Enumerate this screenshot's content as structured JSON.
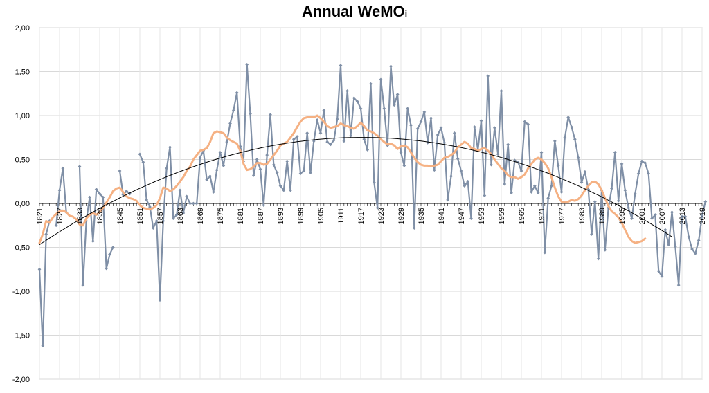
{
  "chart_data": {
    "type": "line",
    "title": "Annual WeMO",
    "title_subscript": "i",
    "xlabel": "",
    "ylabel": "",
    "ylim": [
      -2,
      2
    ],
    "xlim": [
      1821,
      2019
    ],
    "y_ticks": [
      "-2,00",
      "-1,50",
      "-1,00",
      "-0,50",
      "0,00",
      "0,50",
      "1,00",
      "1,50",
      "2,00"
    ],
    "x_ticks": [
      "1821",
      "1827",
      "1833",
      "1839",
      "1845",
      "1851",
      "1857",
      "1863",
      "1869",
      "1875",
      "1881",
      "1887",
      "1893",
      "1899",
      "1905",
      "1911",
      "1917",
      "1923",
      "1929",
      "1935",
      "1941",
      "1947",
      "1953",
      "1959",
      "1965",
      "1971",
      "1977",
      "1983",
      "1989",
      "1995",
      "2001",
      "2007",
      "2013",
      "2019"
    ],
    "grid": true,
    "legend": "none",
    "colors": {
      "annual": "#7f8fa6",
      "smooth": "#f5b183",
      "trend": "#000000"
    },
    "series": [
      {
        "id": "annual",
        "style": "line-markers",
        "start_year": 1821,
        "values": [
          -0.75,
          -1.62,
          -0.35,
          -0.2,
          null,
          -0.25,
          0.15,
          0.4,
          -0.1,
          null,
          null,
          null,
          0.42,
          -0.93,
          -0.2,
          0.07,
          -0.43,
          0.16,
          0.11,
          0.07,
          -0.74,
          -0.58,
          -0.5,
          null,
          0.37,
          0.1,
          0.14,
          0.11,
          null,
          null,
          0.56,
          0.47,
          0.04,
          -0.04,
          -0.28,
          -0.2,
          -1.1,
          -0.2,
          0.4,
          0.64,
          -0.17,
          -0.13,
          0.15,
          -0.11,
          0.08,
          0.0,
          0.0,
          0.0,
          0.52,
          0.6,
          0.27,
          0.31,
          0.13,
          0.38,
          0.58,
          0.43,
          0.7,
          0.91,
          1.06,
          1.26,
          0.65,
          0.48,
          1.58,
          1.02,
          0.32,
          0.5,
          0.39,
          -0.02,
          0.55,
          1.01,
          0.44,
          0.35,
          0.2,
          0.15,
          0.48,
          0.15,
          0.73,
          0.76,
          0.34,
          0.37,
          0.8,
          0.35,
          0.71,
          0.95,
          0.8,
          1.06,
          0.7,
          0.67,
          0.72,
          0.96,
          1.57,
          0.71,
          1.28,
          0.77,
          1.2,
          1.16,
          1.08,
          0.73,
          0.61,
          1.36,
          0.24,
          -0.05,
          1.41,
          1.08,
          0.66,
          1.56,
          1.12,
          1.24,
          0.58,
          0.43,
          1.08,
          0.89,
          -0.28,
          0.85,
          0.93,
          1.04,
          0.69,
          0.97,
          0.38,
          0.78,
          0.86,
          0.69,
          0.04,
          0.31,
          0.8,
          0.51,
          0.37,
          0.2,
          0.25,
          -0.17,
          0.87,
          0.61,
          0.94,
          0.09,
          1.45,
          0.44,
          0.86,
          0.56,
          1.28,
          0.22,
          0.67,
          0.12,
          0.49,
          0.47,
          0.37,
          0.93,
          0.9,
          0.13,
          0.2,
          0.12,
          0.58,
          -0.56,
          0.06,
          0.2,
          0.71,
          0.43,
          0.13,
          0.75,
          0.98,
          0.87,
          0.73,
          0.52,
          0.24,
          0.36,
          0.16,
          -0.35,
          0.02,
          -0.63,
          0.15,
          -0.53,
          -0.05,
          0.17,
          0.58,
          0.03,
          0.45,
          0.15,
          -0.05,
          -0.17,
          0.11,
          0.34,
          0.48,
          0.46,
          0.34,
          -0.17,
          -0.13,
          -0.77,
          -0.83,
          -0.3,
          -0.47,
          -0.1,
          -0.49,
          -0.93,
          -0.15,
          -0.15,
          -0.38,
          -0.52,
          -0.57,
          -0.42,
          -0.14,
          0.02
        ]
      },
      {
        "id": "smooth",
        "style": "line",
        "start_year": 1821,
        "values": [
          -0.45,
          -0.35,
          -0.2,
          -0.22,
          -0.16,
          -0.12,
          -0.09,
          -0.08,
          -0.1,
          -0.14,
          -0.15,
          -0.18,
          -0.24,
          -0.25,
          -0.17,
          -0.13,
          -0.11,
          -0.13,
          -0.1,
          -0.05,
          0.01,
          0.07,
          0.14,
          0.17,
          0.18,
          0.13,
          0.08,
          0.06,
          0.05,
          0.03,
          -0.02,
          -0.05,
          -0.06,
          -0.07,
          -0.05,
          -0.02,
          0.06,
          0.18,
          0.17,
          0.14,
          0.16,
          0.2,
          0.25,
          0.3,
          0.37,
          0.42,
          0.5,
          0.55,
          0.6,
          0.61,
          0.63,
          0.7,
          0.8,
          0.82,
          0.81,
          0.8,
          0.75,
          0.72,
          0.7,
          0.68,
          0.6,
          0.45,
          0.38,
          0.39,
          0.42,
          0.46,
          0.46,
          0.44,
          0.45,
          0.5,
          0.55,
          0.6,
          0.66,
          0.68,
          0.7,
          0.75,
          0.8,
          0.87,
          0.93,
          0.97,
          0.98,
          0.98,
          0.98,
          1.0,
          0.97,
          0.93,
          0.88,
          0.86,
          0.87,
          0.88,
          0.91,
          0.89,
          0.88,
          0.86,
          0.85,
          0.88,
          0.92,
          0.88,
          0.83,
          0.82,
          0.8,
          0.77,
          0.73,
          0.7,
          0.67,
          0.68,
          0.66,
          0.62,
          0.65,
          0.66,
          0.64,
          0.58,
          0.52,
          0.47,
          0.44,
          0.43,
          0.43,
          0.42,
          0.43,
          0.44,
          0.48,
          0.52,
          0.53,
          0.55,
          0.58,
          0.64,
          0.67,
          0.7,
          0.68,
          0.63,
          0.62,
          0.6,
          0.62,
          0.63,
          0.6,
          0.56,
          0.5,
          0.45,
          0.4,
          0.37,
          0.32,
          0.3,
          0.3,
          0.28,
          0.3,
          0.33,
          0.4,
          0.45,
          0.5,
          0.52,
          0.5,
          0.46,
          0.4,
          0.3,
          0.18,
          0.08,
          0.02,
          0.01,
          0.02,
          0.04,
          0.03,
          0.05,
          0.09,
          0.15,
          0.2,
          0.24,
          0.25,
          0.22,
          0.15,
          0.06,
          -0.03,
          -0.09,
          -0.12,
          -0.16,
          -0.22,
          -0.3,
          -0.38,
          -0.43,
          -0.45,
          -0.44,
          -0.43,
          -0.4
        ]
      },
      {
        "id": "trend",
        "style": "line",
        "curve": "quadratic",
        "points": [
          [
            1821,
            -0.47
          ],
          [
            1914,
            0.75
          ],
          [
            2010,
            -0.38
          ]
        ]
      }
    ]
  }
}
